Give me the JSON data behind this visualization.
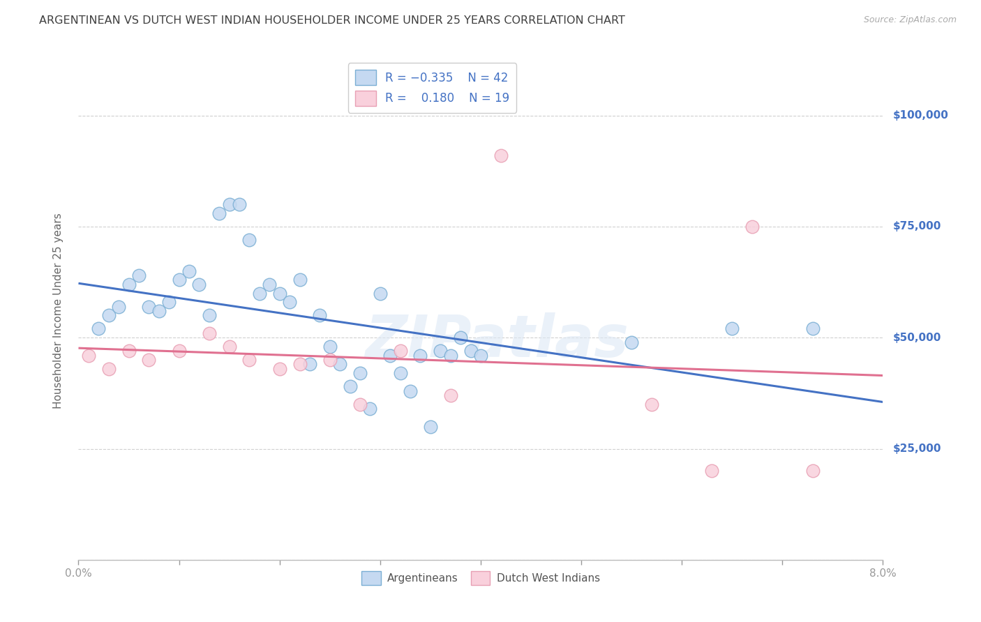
{
  "title": "ARGENTINEAN VS DUTCH WEST INDIAN HOUSEHOLDER INCOME UNDER 25 YEARS CORRELATION CHART",
  "source": "Source: ZipAtlas.com",
  "ylabel": "Householder Income Under 25 years",
  "xlim": [
    0.0,
    0.08
  ],
  "ylim": [
    0,
    112000
  ],
  "yticks": [
    0,
    25000,
    50000,
    75000,
    100000
  ],
  "ytick_labels": [
    "",
    "$25,000",
    "$50,000",
    "$75,000",
    "$100,000"
  ],
  "blue_fill": "#c5d9f1",
  "blue_edge": "#7bafd4",
  "pink_fill": "#f9d0dc",
  "pink_edge": "#e8a0b4",
  "line_blue": "#4472c4",
  "line_pink": "#e07090",
  "label_blue": "Argentineans",
  "label_pink": "Dutch West Indians",
  "watermark": "ZIPatlas",
  "ytick_color": "#4472c4",
  "background_color": "#ffffff",
  "grid_color": "#d0d0d0",
  "title_color": "#404040",
  "arg_x": [
    0.002,
    0.003,
    0.004,
    0.005,
    0.006,
    0.007,
    0.008,
    0.009,
    0.01,
    0.011,
    0.012,
    0.013,
    0.014,
    0.015,
    0.016,
    0.017,
    0.018,
    0.019,
    0.02,
    0.021,
    0.022,
    0.023,
    0.024,
    0.025,
    0.026,
    0.027,
    0.028,
    0.029,
    0.03,
    0.031,
    0.032,
    0.033,
    0.034,
    0.035,
    0.036,
    0.037,
    0.038,
    0.039,
    0.04,
    0.055,
    0.065,
    0.073
  ],
  "arg_y": [
    52000,
    55000,
    57000,
    62000,
    64000,
    57000,
    56000,
    58000,
    63000,
    65000,
    62000,
    55000,
    78000,
    80000,
    80000,
    72000,
    60000,
    62000,
    60000,
    58000,
    63000,
    44000,
    55000,
    48000,
    44000,
    39000,
    42000,
    34000,
    60000,
    46000,
    42000,
    38000,
    46000,
    30000,
    47000,
    46000,
    50000,
    47000,
    46000,
    49000,
    52000,
    52000
  ],
  "dutch_x": [
    0.001,
    0.003,
    0.005,
    0.007,
    0.01,
    0.013,
    0.015,
    0.017,
    0.02,
    0.022,
    0.025,
    0.028,
    0.032,
    0.037,
    0.042,
    0.057,
    0.063,
    0.067,
    0.073
  ],
  "dutch_y": [
    46000,
    43000,
    47000,
    45000,
    47000,
    51000,
    48000,
    45000,
    43000,
    44000,
    45000,
    35000,
    47000,
    37000,
    91000,
    35000,
    20000,
    75000,
    20000
  ]
}
